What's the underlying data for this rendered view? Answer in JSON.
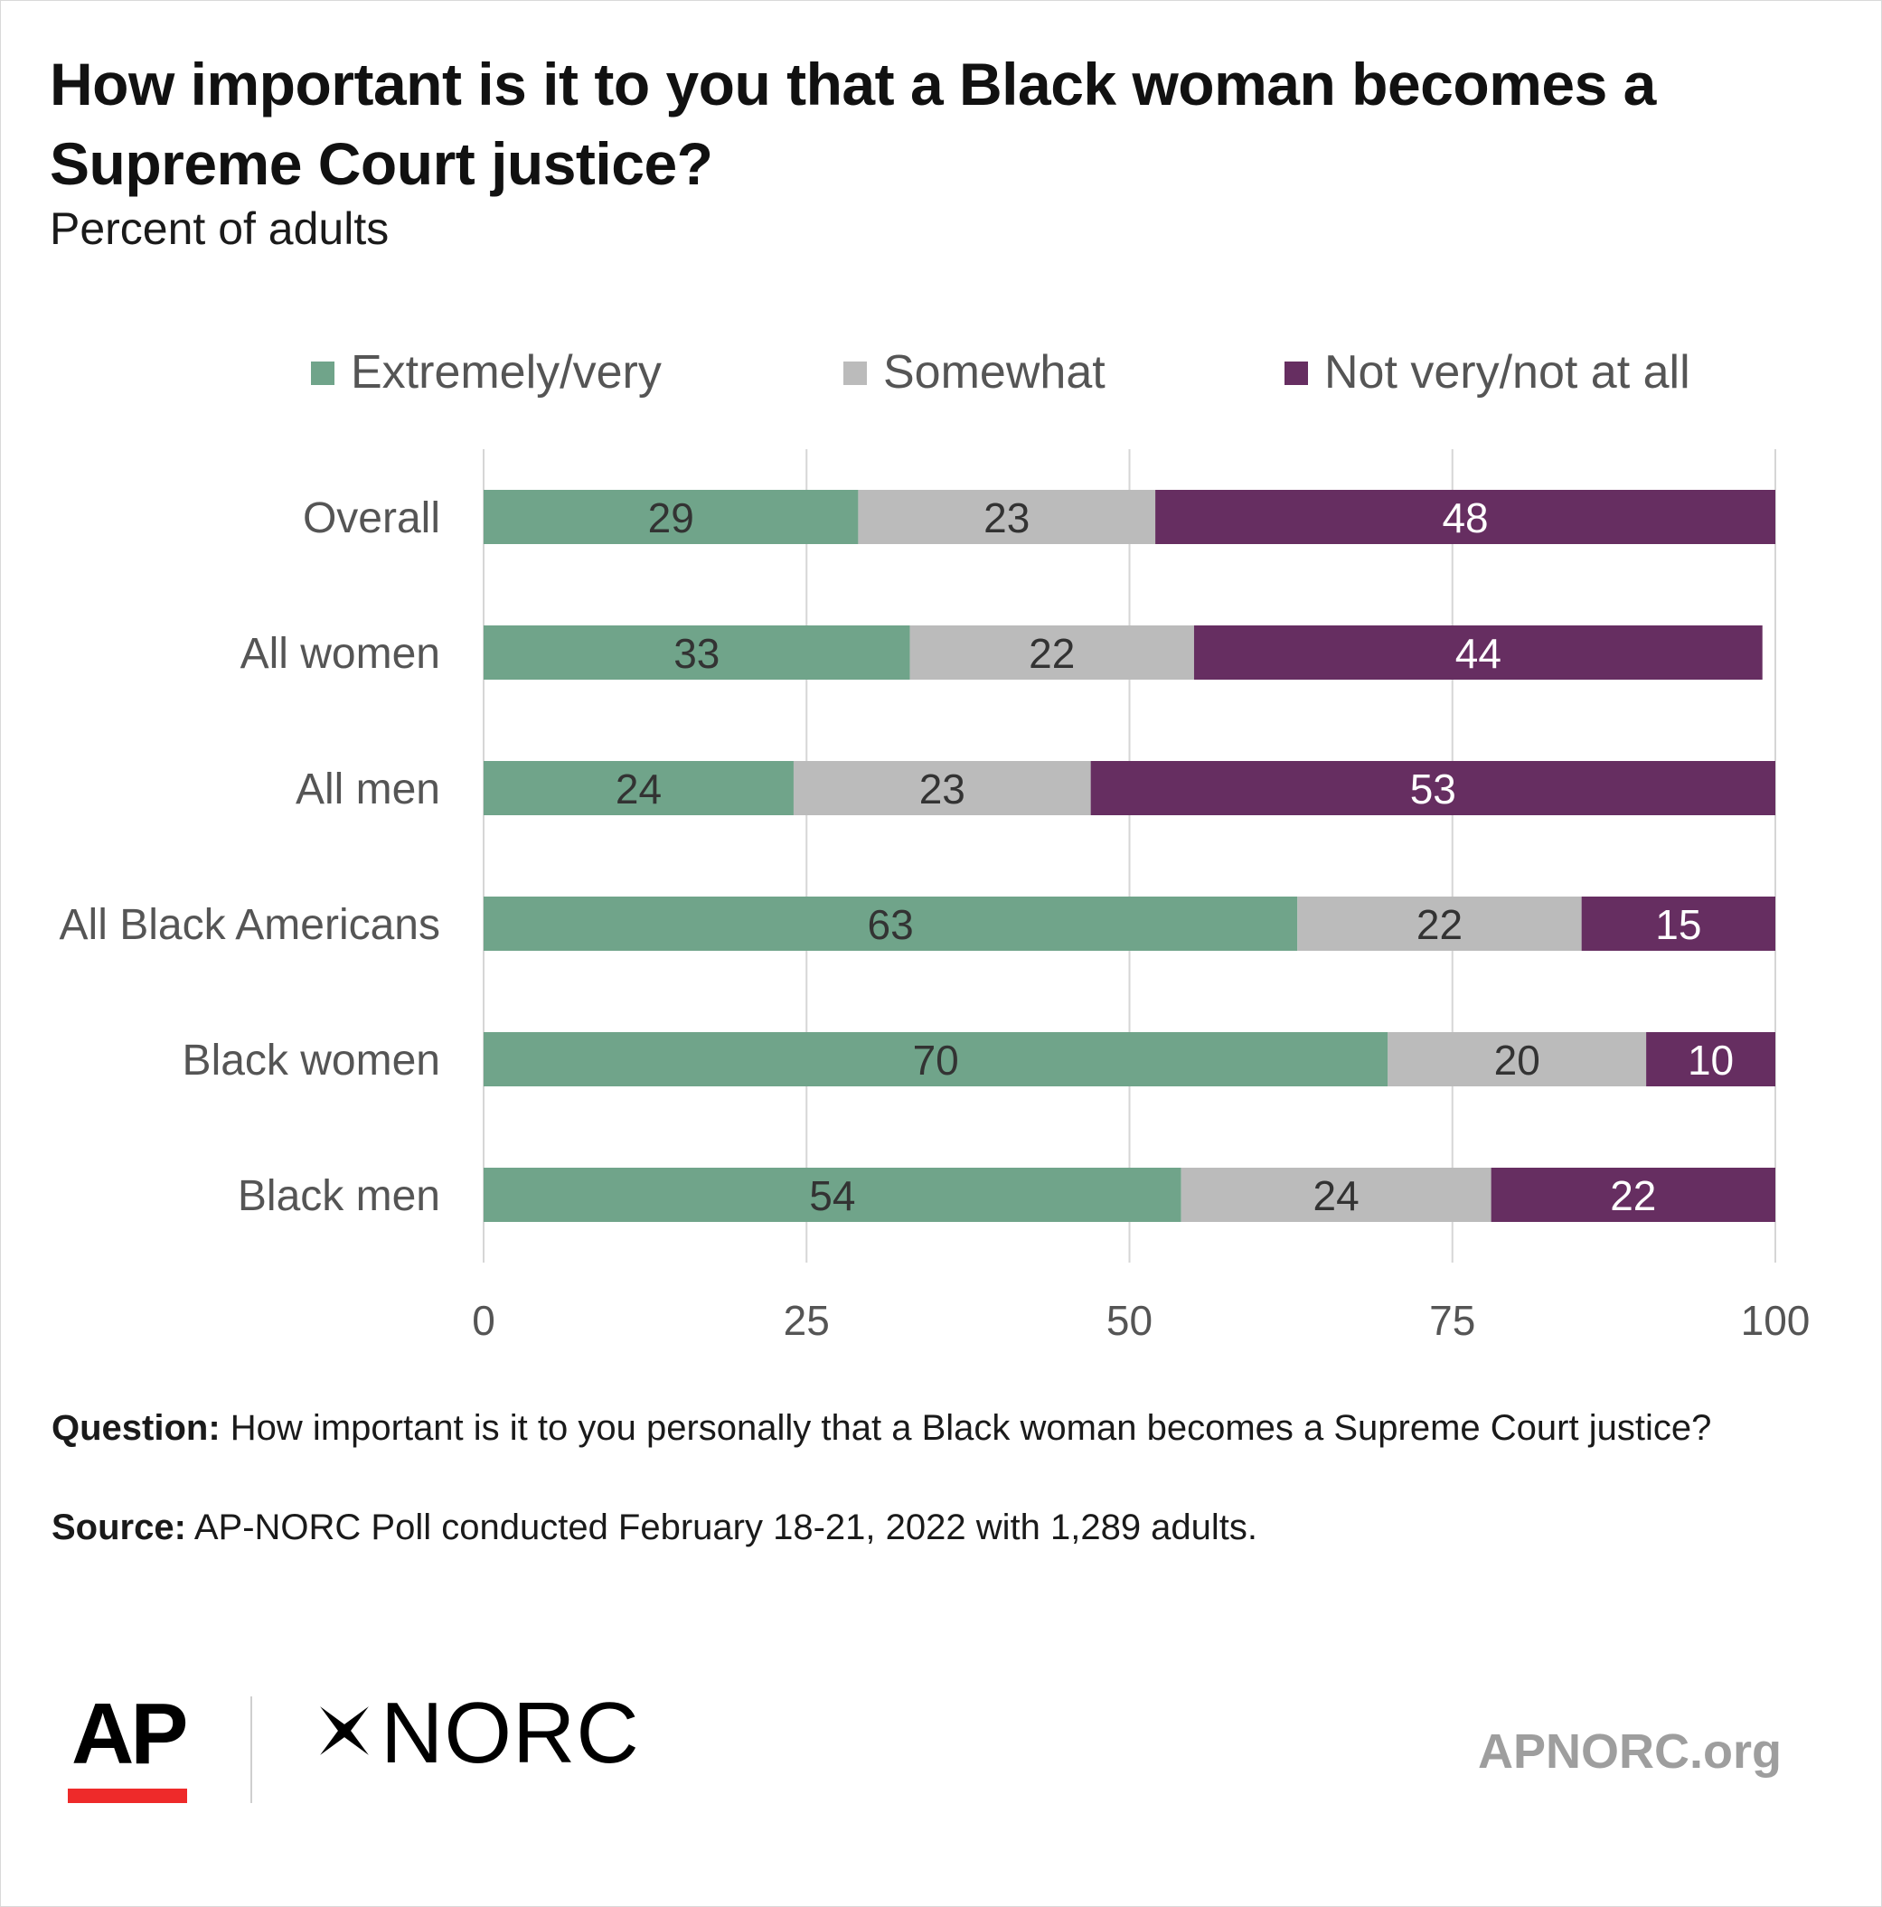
{
  "chart_data": {
    "type": "bar",
    "orientation": "horizontal",
    "stacked": true,
    "title": "How important is it to you that a Black woman becomes a Supreme Court justice?",
    "subtitle": "Percent of adults",
    "categories": [
      "Overall",
      "All women",
      "All men",
      "All Black Americans",
      "Black women",
      "Black men"
    ],
    "series": [
      {
        "name": "Extremely/very",
        "color": "#70a48a",
        "label_color": "#333333",
        "values": [
          29,
          33,
          24,
          63,
          70,
          54
        ]
      },
      {
        "name": "Somewhat",
        "color": "#bbbbbb",
        "label_color": "#333333",
        "values": [
          23,
          22,
          23,
          22,
          20,
          24
        ]
      },
      {
        "name": "Not very/not at all",
        "color": "#662e61",
        "label_color": "#ffffff",
        "values": [
          48,
          44,
          53,
          15,
          10,
          22
        ]
      }
    ],
    "xlim": [
      0,
      100
    ],
    "xticks": [
      0,
      25,
      50,
      75,
      100
    ],
    "grid": true,
    "legend": "top"
  },
  "notes": {
    "question_label": "Question:",
    "question_text": "How important is it to you personally that a Black woman becomes a Supreme Court justice?",
    "source_label": "Source:",
    "source_text": "AP-NORC Poll conducted February 18-21, 2022 with 1,289 adults."
  },
  "branding": {
    "ap_logo": "AP",
    "norc_logo": "NORC",
    "star_icon": "norc-star-icon",
    "website": "APNORC.org",
    "ap_accent_color": "#ee2a2a"
  }
}
